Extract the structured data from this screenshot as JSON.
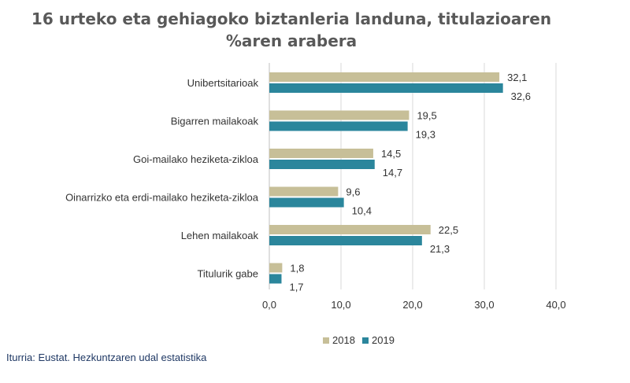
{
  "chart_data": {
    "type": "bar",
    "orientation": "horizontal",
    "title_line1": "16 urteko eta gehiagoko biztanleria landuna, titulazioaren",
    "title_line2": "%aren arabera",
    "categories": [
      "Unibertsitarioak",
      "Bigarren mailakoak",
      "Goi-mailako heziketa-zikloa",
      "Oinarrizko eta erdi-mailako heziketa-zikloa",
      "Lehen mailakoak",
      "Titulurik gabe"
    ],
    "series": [
      {
        "name": "2018",
        "color": "#c7bf98",
        "values": [
          32.1,
          19.5,
          14.5,
          9.6,
          22.5,
          1.8
        ],
        "labels": [
          "32,1",
          "19,5",
          "14,5",
          "9,6",
          "22,5",
          "1,8"
        ]
      },
      {
        "name": "2019",
        "color": "#2b869c",
        "values": [
          32.6,
          19.3,
          14.7,
          10.4,
          21.3,
          1.7
        ],
        "labels": [
          "32,6",
          "19,3",
          "14,7",
          "10,4",
          "21,3",
          "1,7"
        ]
      }
    ],
    "xlim": [
      0,
      40
    ],
    "xticks": [
      0,
      10,
      20,
      30,
      40
    ],
    "xtick_labels": [
      "0,0",
      "10,0",
      "20,0",
      "30,0",
      "40,0"
    ],
    "grid": true,
    "legend_position": "bottom"
  },
  "source": "Iturria: Eustat. Hezkuntzaren udal estatistika"
}
